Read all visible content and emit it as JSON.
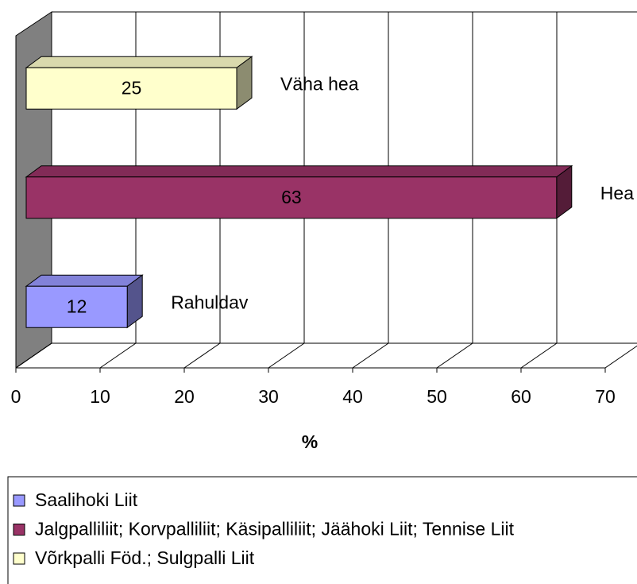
{
  "chart_data": {
    "type": "bar",
    "orientation": "horizontal",
    "categories": [
      "Rahuldav",
      "Hea",
      "Väha hea"
    ],
    "series": [
      {
        "name": "Saalihoki Liit",
        "color": "#9999ff",
        "values": [
          12,
          null,
          null
        ]
      },
      {
        "name": "Jalgpalliliit; Korvpalliliit; Käsipalliliit; Jäähoki Liit; Tennise Liit",
        "color": "#993366",
        "values": [
          null,
          63,
          null
        ]
      },
      {
        "name": "Võrkpalli Föd.; Sulgpalli Liit",
        "color": "#ffffcc",
        "values": [
          null,
          null,
          25
        ]
      }
    ],
    "xlabel": "%",
    "xlim": [
      0,
      70
    ],
    "xticks": [
      0,
      10,
      20,
      30,
      40,
      50,
      60,
      70
    ],
    "grid": true,
    "legend": "bottom"
  }
}
